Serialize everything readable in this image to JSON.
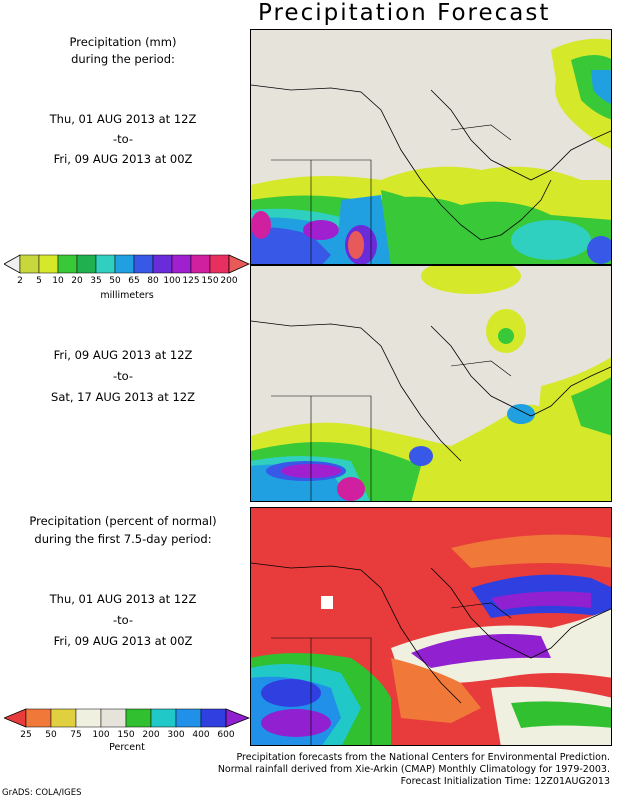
{
  "title": "Precipitation Forecast",
  "panel1": {
    "heading": [
      "Precipitation (mm)",
      "during the period:"
    ],
    "start": "Thu, 01 AUG 2013 at 12Z",
    "to": "-to-",
    "end": "Fri, 09 AUG 2013 at 00Z"
  },
  "panel2": {
    "start": "Fri, 09 AUG 2013 at 12Z",
    "to": "-to-",
    "end": "Sat, 17 AUG 2013 at 12Z"
  },
  "panel3": {
    "heading": [
      "Precipitation (percent of normal)",
      "during the first 7.5-day period:"
    ],
    "start": "Thu, 01 AUG 2013 at 12Z",
    "to": "-to-",
    "end": "Fri, 09 AUG 2013 at 00Z"
  },
  "colorbar_mm": {
    "ticks": [
      "2",
      "5",
      "10",
      "20",
      "35",
      "50",
      "65",
      "80",
      "100",
      "125",
      "150",
      "200"
    ],
    "unit": "millimeters",
    "colors": [
      "#f0f0f0",
      "#c8d83c",
      "#d6e82a",
      "#38c838",
      "#20b050",
      "#30d0c0",
      "#20a0e0",
      "#3858e8",
      "#6a2cd8",
      "#a020d0",
      "#d020a0",
      "#e83060",
      "#e85a5a"
    ]
  },
  "colorbar_pct": {
    "ticks": [
      "25",
      "50",
      "75",
      "100",
      "150",
      "200",
      "300",
      "400",
      "600"
    ],
    "unit": "Percent",
    "colors": [
      "#e83c3c",
      "#f07838",
      "#e0d040",
      "#f0f0e0",
      "#e6e3db",
      "#30c030",
      "#20c8c8",
      "#2090e8",
      "#3040e0",
      "#9020d0"
    ]
  },
  "credits": [
    "Precipitation forecasts from the National Centers for Environmental Prediction.",
    "Normal rainfall derived from Xie-Arkin (CMAP) Monthly Climatology for 1979-2003.",
    "Forecast Initialization Time: 12Z01AUG2013"
  ],
  "grads": "GrADS: COLA/IGES"
}
